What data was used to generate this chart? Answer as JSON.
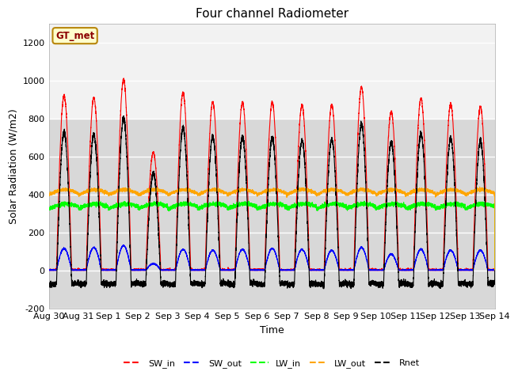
{
  "title": "Four channel Radiometer",
  "xlabel": "Time",
  "ylabel": "Solar Radiation (W/m2)",
  "ylim": [
    -200,
    1300
  ],
  "xlim": [
    0,
    15
  ],
  "xtick_labels": [
    "Aug 30",
    "Aug 31",
    "Sep 1",
    "Sep 2",
    "Sep 3",
    "Sep 4",
    "Sep 5",
    "Sep 6",
    "Sep 7",
    "Sep 8",
    "Sep 9",
    "Sep 10",
    "Sep 11",
    "Sep 12",
    "Sep 13",
    "Sep 14"
  ],
  "xtick_positions": [
    0,
    1,
    2,
    3,
    4,
    5,
    6,
    7,
    8,
    9,
    10,
    11,
    12,
    13,
    14,
    15
  ],
  "ytick_values": [
    -200,
    0,
    200,
    400,
    600,
    800,
    1000,
    1200
  ],
  "legend_entries": [
    "SW_in",
    "SW_out",
    "LW_in",
    "LW_out",
    "Rnet"
  ],
  "legend_colors": [
    "red",
    "blue",
    "lime",
    "orange",
    "black"
  ],
  "station_label": "GT_met",
  "plot_bg_lower": "#d8d8d8",
  "plot_bg_upper": "#f0f0f0",
  "grid_color": "#ffffff",
  "n_days": 15,
  "sw_in_peaks": [
    920,
    910,
    1005,
    620,
    935,
    885,
    885,
    885,
    870,
    870,
    965,
    835,
    905,
    875,
    860
  ],
  "sw_out_peaks": [
    115,
    120,
    130,
    35,
    110,
    105,
    110,
    115,
    110,
    105,
    120,
    85,
    110,
    105,
    105
  ],
  "lw_in_base": 330,
  "lw_out_base": 400,
  "title_fontsize": 11,
  "label_fontsize": 9,
  "tick_fontsize": 8
}
